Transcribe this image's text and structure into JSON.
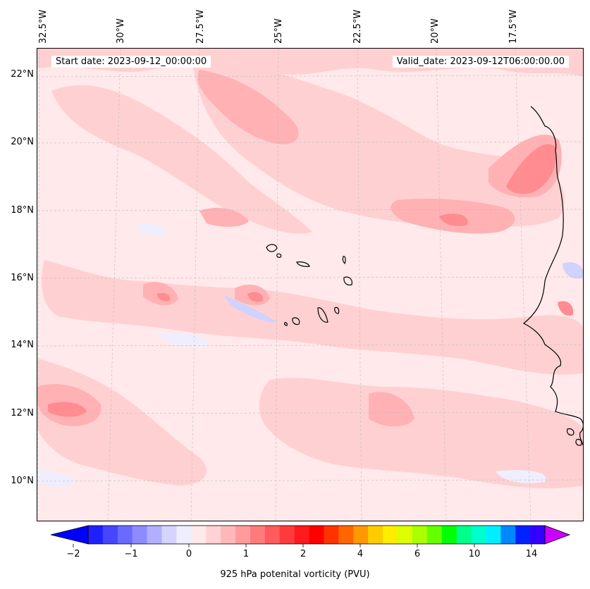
{
  "header": {
    "start_date": "Start date: 2023-09-12_00:00:00",
    "valid_date": "Valid_date: 2023-09-12T06:00:00.00"
  },
  "axes": {
    "lon_labels": [
      "32.5°W",
      "30°W",
      "27.5°W",
      "25°W",
      "22.5°W",
      "20°W",
      "17.5°W"
    ],
    "lat_labels": [
      "22°N",
      "20°N",
      "18°N",
      "16°N",
      "14°N",
      "12°N",
      "10°N"
    ]
  },
  "colorbar": {
    "title": "925 hPa potenital vorticity (PVU)",
    "tick_labels": [
      "−2",
      "−1",
      "0",
      "1",
      "2",
      "4",
      "6",
      "10",
      "14"
    ],
    "colors": [
      "#0000ff",
      "#2020ff",
      "#4646ff",
      "#6a6aff",
      "#8c8cff",
      "#b0b0ff",
      "#d4d4ff",
      "#eeeeff",
      "#ffe9ea",
      "#ffd2d3",
      "#ffb8ba",
      "#ff9a9d",
      "#ff7a7d",
      "#ff5a5d",
      "#ff3a3d",
      "#ff1a1c",
      "#ff0000",
      "#ff3300",
      "#ff6600",
      "#ff9900",
      "#ffcc00",
      "#ffee00",
      "#ddff00",
      "#aaff00",
      "#66ff00",
      "#00ff00",
      "#00ff88",
      "#00ffcc",
      "#00eeff",
      "#0088ff",
      "#0022ff",
      "#3300ff",
      "#9900ff"
    ],
    "extend_low_color": "#0000ff",
    "extend_high_color": "#cc00ff"
  },
  "map_colors": {
    "background": "#ffe9ea",
    "light_pink": "#ffd0d2",
    "pink": "#ffb1b4",
    "dark_pink": "#ff8c90",
    "light_blue": "#eeeeff",
    "blue": "#d0d2ff",
    "coast": "#000000",
    "grid": "#bbbbbb"
  }
}
